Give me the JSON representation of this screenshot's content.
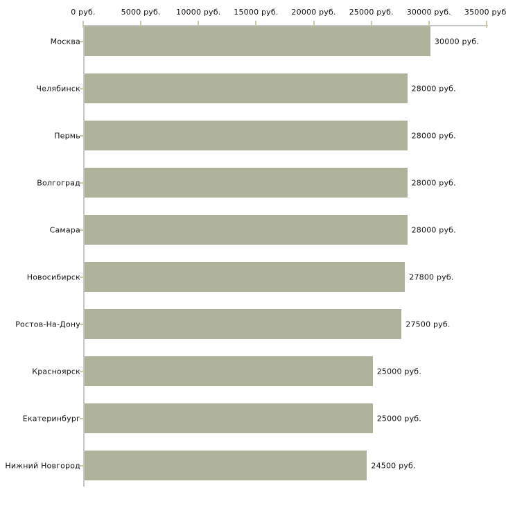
{
  "chart_data": {
    "type": "bar",
    "orientation": "horizontal",
    "title": "",
    "xlabel": "",
    "ylabel": "",
    "grid": false,
    "legend": false,
    "xlim": [
      0,
      35000
    ],
    "x_ticks": [
      0,
      5000,
      10000,
      15000,
      20000,
      25000,
      30000,
      35000
    ],
    "x_tick_labels": [
      "0 руб.",
      "5000 руб.",
      "10000 руб.",
      "15000 руб.",
      "20000 руб.",
      "25000 руб.",
      "30000 руб.",
      "35000 руб."
    ],
    "categories": [
      "Москва",
      "Челябинск",
      "Пермь",
      "Волгоград",
      "Самара",
      "Новосибирск",
      "Ростов-На-Дону",
      "Красноярск",
      "Екатеринбург",
      "Нижний Новгород"
    ],
    "values": [
      30000,
      28000,
      28000,
      28000,
      28000,
      27800,
      27500,
      25000,
      25000,
      24500
    ],
    "value_labels": [
      "30000 руб.",
      "28000 руб.",
      "28000 руб.",
      "28000 руб.",
      "28000 руб.",
      "27800 руб.",
      "27500 руб.",
      "25000 руб.",
      "25000 руб.",
      "24500 руб."
    ],
    "colors": {
      "bar": "#aeb29a",
      "axis_line": "#c6c6c6",
      "tick_mark": "#cdc9a4",
      "text": "#111111",
      "background": "#ffffff"
    }
  }
}
